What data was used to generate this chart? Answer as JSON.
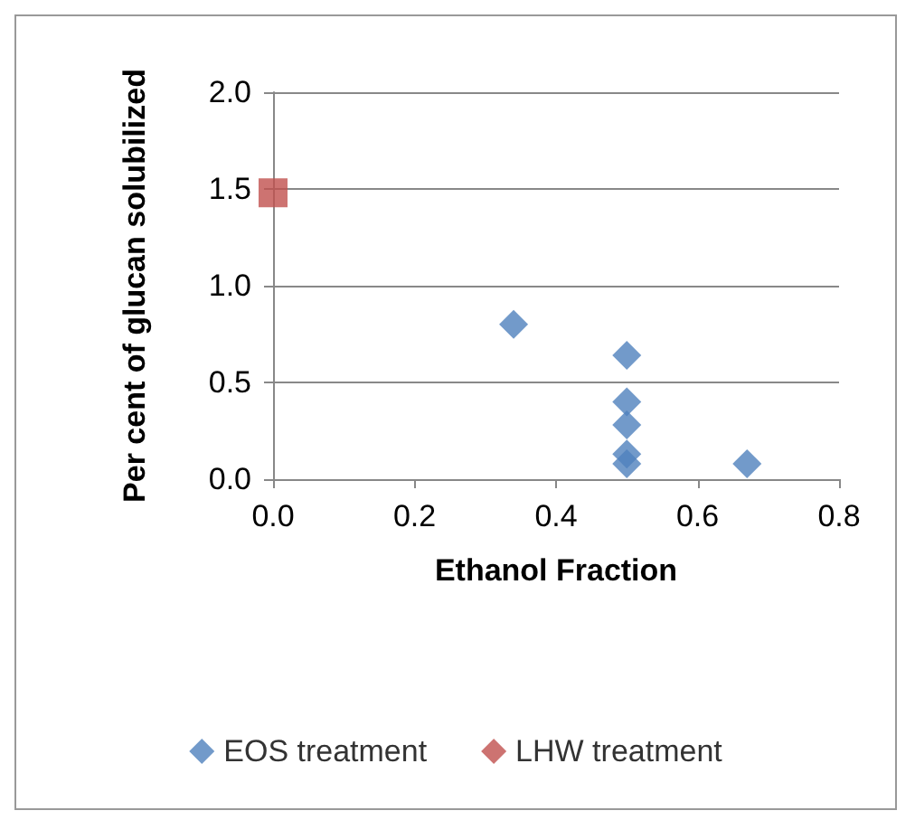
{
  "chart_data": {
    "type": "scatter",
    "xlabel": "Ethanol Fraction",
    "ylabel": "Per cent of glucan solubilized",
    "xlim": [
      0,
      0.8
    ],
    "xticks": [
      {
        "value": 0,
        "label": "0.0"
      },
      0.2,
      0.4,
      0.6,
      0.8
    ],
    "ylim": [
      0,
      2
    ],
    "yticks": [
      {
        "value": 0,
        "label": "0.0"
      },
      0.5,
      {
        "value": 1,
        "label": "1.0"
      },
      1.5,
      {
        "value": 2,
        "label": "2.0"
      }
    ],
    "grid": "y",
    "legend": "bottom",
    "series": [
      {
        "name": "EOS treatment",
        "color": "#4f81bd",
        "marker": "diamond",
        "x": [
          0.34,
          0.5,
          0.5,
          0.5,
          0.5,
          0.5,
          0.67
        ],
        "values": [
          0.8,
          0.64,
          0.4,
          0.28,
          0.13,
          0.08,
          0.08
        ]
      },
      {
        "name": "LHW treatment",
        "color": "#c0504d",
        "marker": "square",
        "x": [
          0
        ],
        "values": [
          1.48
        ]
      }
    ]
  }
}
